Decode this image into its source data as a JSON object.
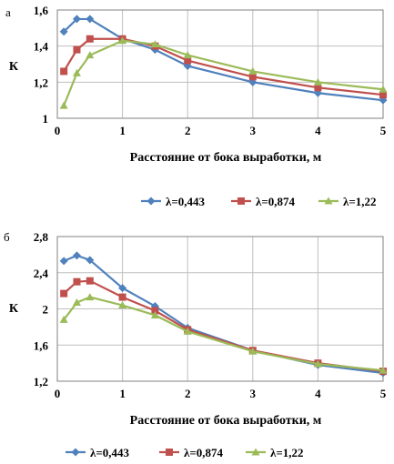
{
  "chart_data": [
    {
      "panel_label": "а",
      "type": "line",
      "xlabel": "Расстояние от бока выработки, м",
      "ylabel": "К",
      "xlim": [
        0,
        5
      ],
      "ylim": [
        1,
        1.6
      ],
      "x_ticks": [
        0,
        1,
        2,
        3,
        4,
        5
      ],
      "y_ticks": [
        "1",
        "1,2",
        "1,4",
        "1,6"
      ],
      "y_tick_values": [
        1,
        1.2,
        1.4,
        1.6
      ],
      "grid": true,
      "legend_position": "bottom",
      "series": [
        {
          "name": "λ=0,443",
          "color": "#4f81bd",
          "marker": "diamond",
          "x": [
            0.1,
            0.3,
            0.5,
            1,
            1.5,
            2,
            3,
            4,
            5
          ],
          "y": [
            1.48,
            1.55,
            1.55,
            1.44,
            1.38,
            1.29,
            1.2,
            1.14,
            1.1
          ]
        },
        {
          "name": "λ=0,874",
          "color": "#c0504d",
          "marker": "square",
          "x": [
            0.1,
            0.3,
            0.5,
            1,
            1.5,
            2,
            3,
            4,
            5
          ],
          "y": [
            1.26,
            1.38,
            1.44,
            1.44,
            1.4,
            1.32,
            1.23,
            1.17,
            1.13
          ]
        },
        {
          "name": "λ=1,22",
          "color": "#9bbb59",
          "marker": "triangle",
          "x": [
            0.1,
            0.3,
            0.5,
            1,
            1.5,
            2,
            3,
            4,
            5
          ],
          "y": [
            1.07,
            1.25,
            1.35,
            1.43,
            1.41,
            1.35,
            1.26,
            1.2,
            1.16
          ]
        }
      ]
    },
    {
      "panel_label": "б",
      "type": "line",
      "xlabel": "Расстояние от бока выработки, м",
      "ylabel": "К",
      "xlim": [
        0,
        5
      ],
      "ylim": [
        1.2,
        2.8
      ],
      "x_ticks": [
        0,
        1,
        2,
        3,
        4,
        5
      ],
      "y_ticks": [
        "1,2",
        "1,6",
        "2",
        "2,4",
        "2,8"
      ],
      "y_tick_values": [
        1.2,
        1.6,
        2,
        2.4,
        2.8
      ],
      "grid": true,
      "legend_position": "bottom",
      "series": [
        {
          "name": "λ=0,443",
          "color": "#4f81bd",
          "marker": "diamond",
          "x": [
            0.1,
            0.3,
            0.5,
            1,
            1.5,
            2,
            3,
            4,
            5
          ],
          "y": [
            2.53,
            2.59,
            2.54,
            2.23,
            2.03,
            1.79,
            1.54,
            1.38,
            1.29
          ]
        },
        {
          "name": "λ=0,874",
          "color": "#c0504d",
          "marker": "square",
          "x": [
            0.1,
            0.3,
            0.5,
            1,
            1.5,
            2,
            3,
            4,
            5
          ],
          "y": [
            2.17,
            2.3,
            2.31,
            2.13,
            1.98,
            1.77,
            1.54,
            1.4,
            1.31
          ]
        },
        {
          "name": "λ=1,22",
          "color": "#9bbb59",
          "marker": "triangle",
          "x": [
            0.1,
            0.3,
            0.5,
            1,
            1.5,
            2,
            3,
            4,
            5
          ],
          "y": [
            1.88,
            2.07,
            2.13,
            2.04,
            1.93,
            1.75,
            1.53,
            1.39,
            1.32
          ]
        }
      ]
    }
  ]
}
